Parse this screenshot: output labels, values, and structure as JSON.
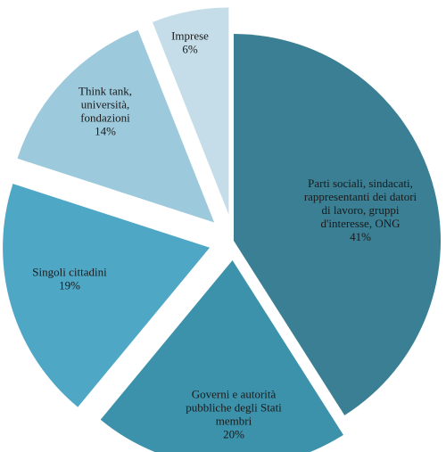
{
  "chart_data": {
    "type": "pie",
    "exploded": true,
    "slices": [
      {
        "label": "Parti sociali, sindacati, rappresentanti dei datori di lavoro, gruppi d'interesse, ONG",
        "label_lines": [
          "Parti sociali, sindacati,",
          "rappresentanti dei datori",
          "di lavoro, gruppi",
          "d'interesse, ONG"
        ],
        "value_label": "41%",
        "value": 41,
        "color": "#3a7f94"
      },
      {
        "label": "Governi e autorità pubbliche degli Stati membri",
        "label_lines": [
          "Governi e autorità",
          "pubbliche degli Stati",
          "membri"
        ],
        "value_label": "20%",
        "value": 20,
        "color": "#3c92ab"
      },
      {
        "label": "Singoli cittadini",
        "label_lines": [
          "Singoli cittadini"
        ],
        "value_label": "19%",
        "value": 19,
        "color": "#4fa7c6"
      },
      {
        "label": "Think tank, università, fondazioni",
        "label_lines": [
          "Think tank,",
          "università,",
          "fondazioni"
        ],
        "value_label": "14%",
        "value": 14,
        "color": "#9dc9dc"
      },
      {
        "label": "Imprese",
        "label_lines": [
          "Imprese"
        ],
        "value_label": "6%",
        "value": 6,
        "color": "#c4dde9"
      }
    ]
  }
}
